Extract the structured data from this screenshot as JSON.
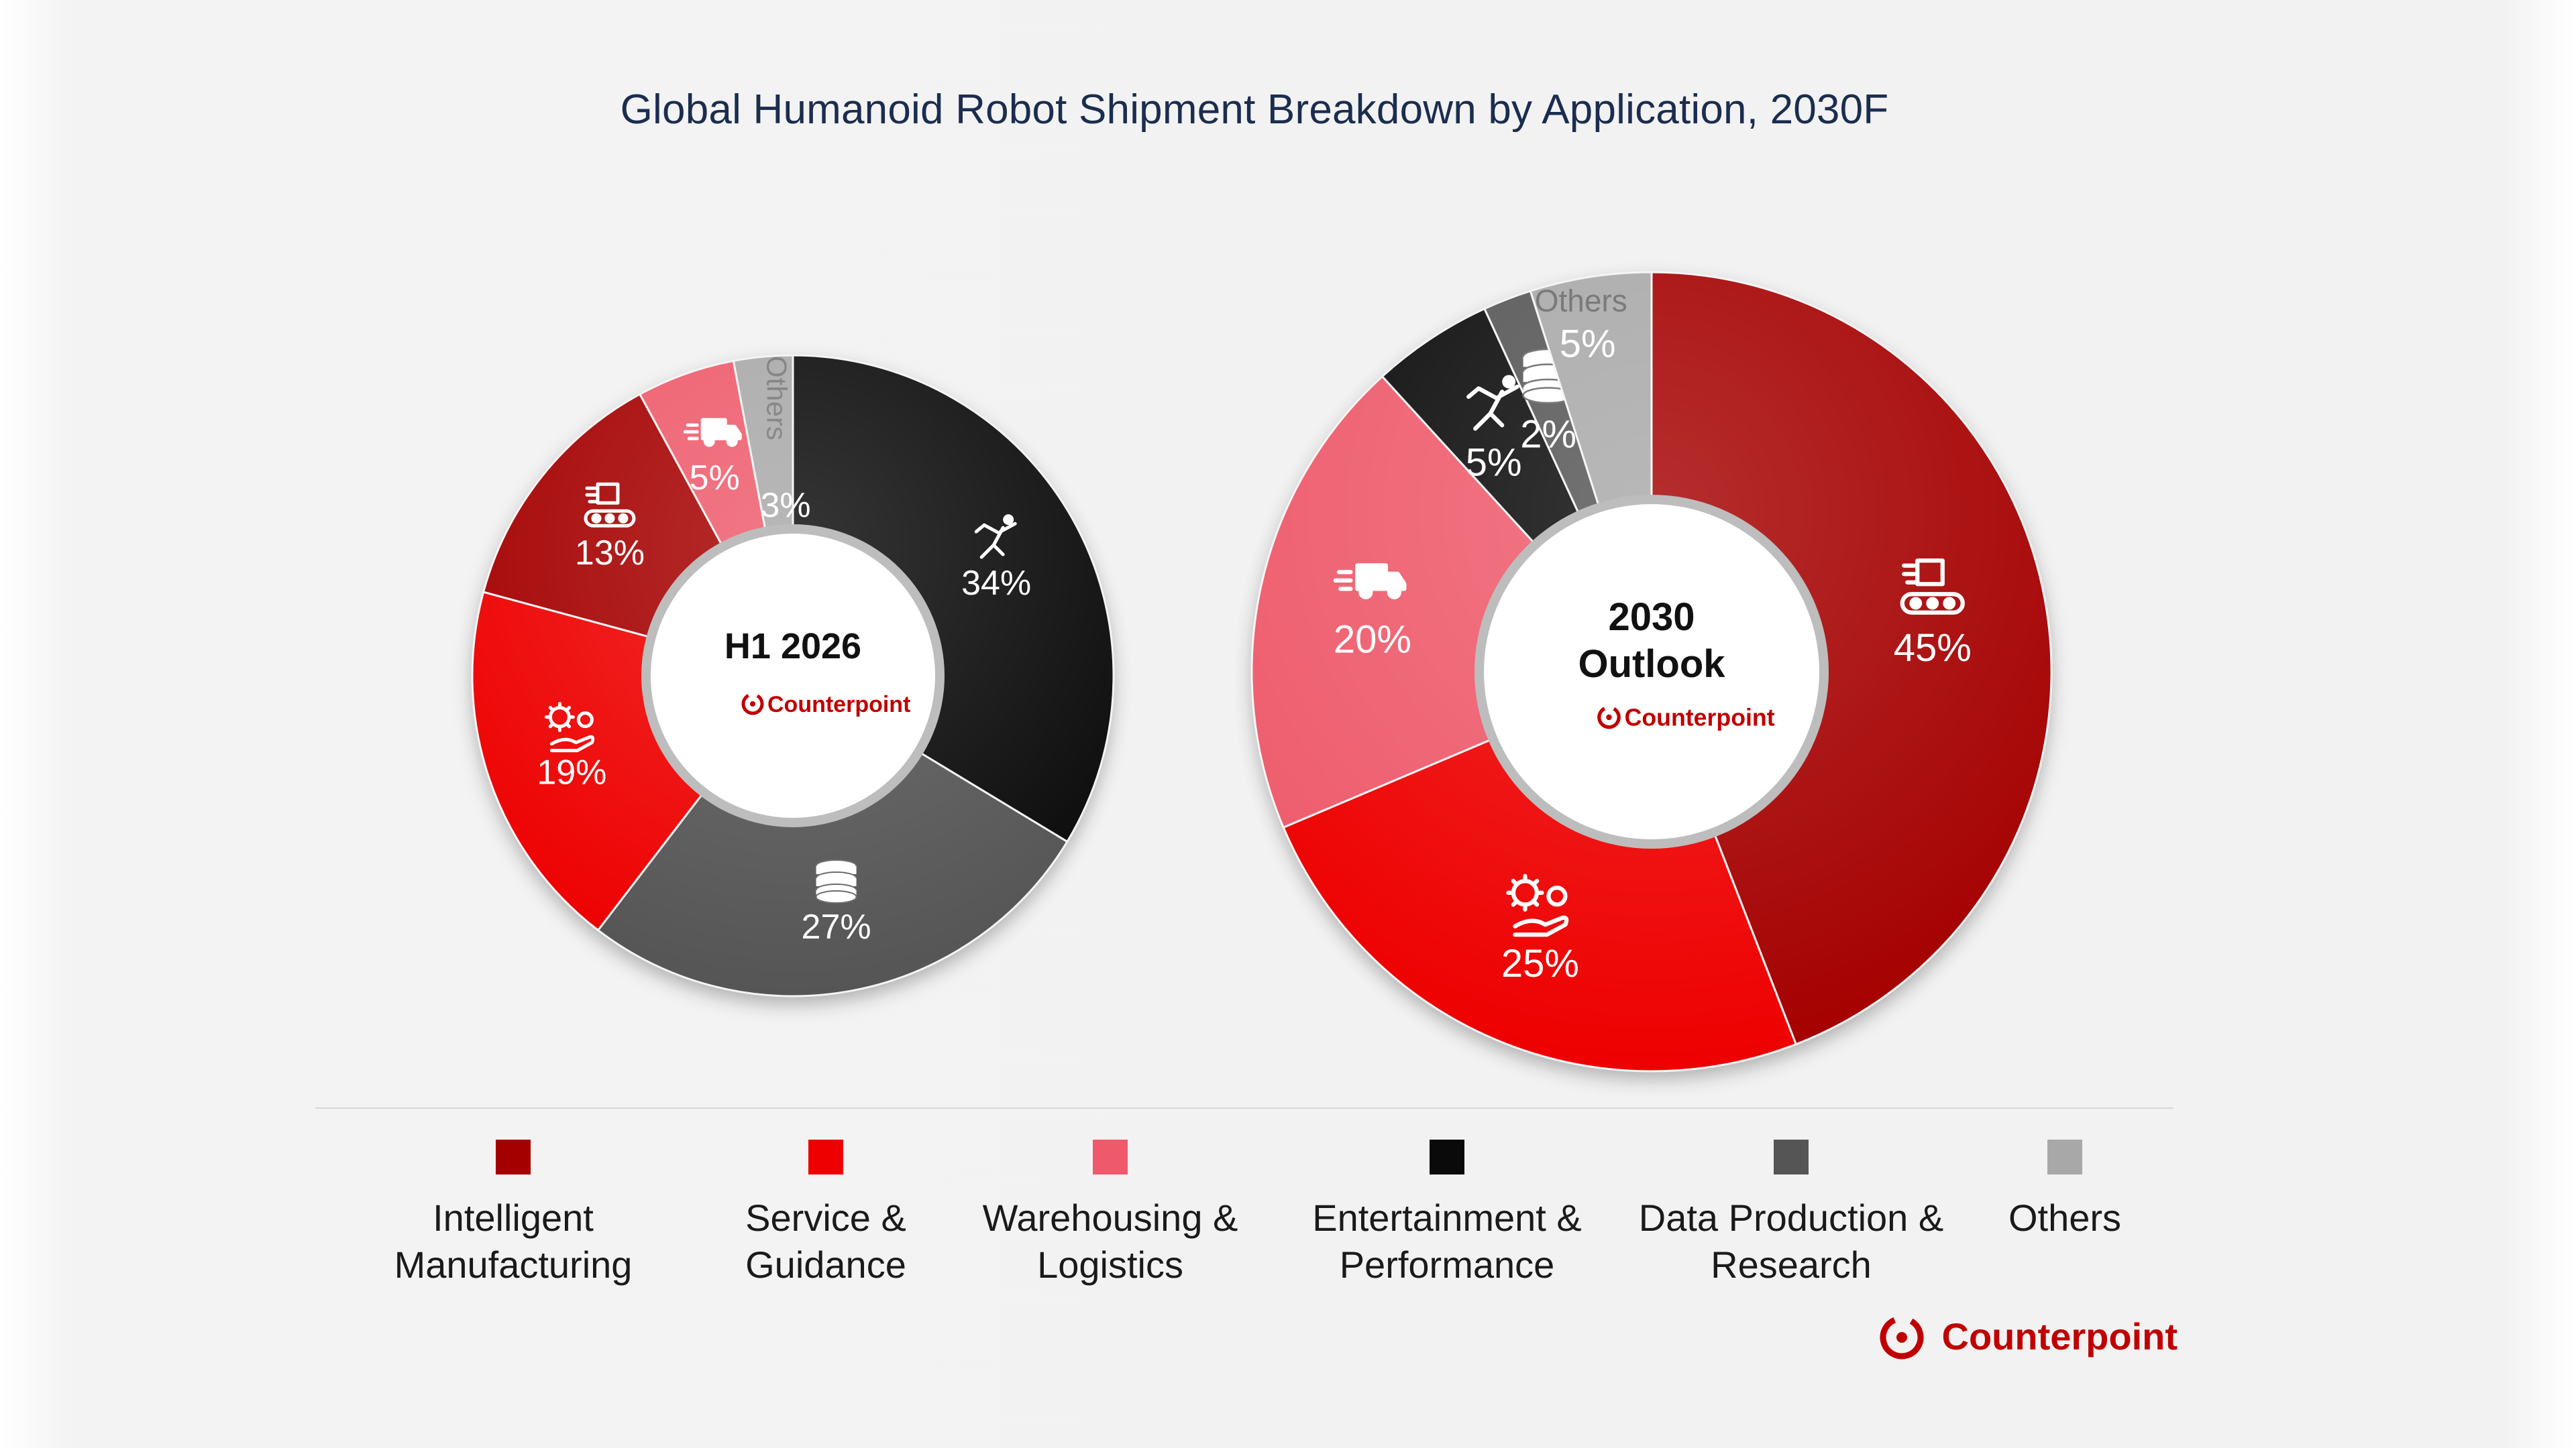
{
  "title": "Global Humanoid Robot Shipment Breakdown by Application, 2030F",
  "colors": {
    "intelligent_manufacturing": "#a50000",
    "service_guidance": "#ee0000",
    "warehousing_logistics": "#ee5a6b",
    "entertainment_performance": "#0a0a0a",
    "data_production_research": "#555555",
    "others": "#a8a8a8"
  },
  "chart_data": [
    {
      "type": "donut",
      "center_label": "H1 2026",
      "center_logo": "Counterpoint",
      "categories": [
        "Entertainment & Performance",
        "Data Production & Research",
        "Service & Guidance",
        "Intelligent Manufacturing",
        "Warehousing & Logistics",
        "Others"
      ],
      "values": [
        34,
        27,
        19,
        13,
        5,
        3
      ],
      "value_labels": [
        "34%",
        "27%",
        "19%",
        "13%",
        "5%",
        "3%"
      ],
      "icons": [
        "performer-icon",
        "database-icon",
        "service-gears-hand-icon",
        "manufacturing-conveyor-icon",
        "delivery-truck-icon",
        ""
      ],
      "slice_text": [
        "",
        "",
        "",
        "",
        "",
        "Others"
      ],
      "colors": [
        "#0a0a0a",
        "#555555",
        "#ee0000",
        "#a50000",
        "#ee5a6b",
        "#a8a8a8"
      ]
    },
    {
      "type": "donut",
      "center_label": "2030\nOutlook",
      "center_logo": "Counterpoint",
      "categories": [
        "Intelligent Manufacturing",
        "Service & Guidance",
        "Warehousing & Logistics",
        "Entertainment & Performance",
        "Data Production & Research",
        "Others"
      ],
      "values": [
        45,
        25,
        20,
        5,
        2,
        5
      ],
      "value_labels": [
        "45%",
        "25%",
        "20%",
        "5%",
        "2%",
        "5%"
      ],
      "icons": [
        "manufacturing-conveyor-icon",
        "service-gears-hand-icon",
        "delivery-truck-icon",
        "performer-icon",
        "database-icon",
        ""
      ],
      "slice_text": [
        "",
        "",
        "",
        "",
        "",
        "Others"
      ],
      "colors": [
        "#a50000",
        "#ee0000",
        "#ee5a6b",
        "#0a0a0a",
        "#555555",
        "#a8a8a8"
      ]
    }
  ],
  "legend": [
    {
      "label": "Intelligent\nManufacturing",
      "color": "#a50000"
    },
    {
      "label": "Service &\nGuidance",
      "color": "#ee0000"
    },
    {
      "label": "Warehousing &\nLogistics",
      "color": "#ee5a6b"
    },
    {
      "label": "Entertainment &\nPerformance",
      "color": "#0a0a0a"
    },
    {
      "label": "Data Production &\nResearch",
      "color": "#555555"
    },
    {
      "label": "Others",
      "color": "#a8a8a8"
    }
  ],
  "footer": {
    "logo_text": "Counterpoint"
  }
}
